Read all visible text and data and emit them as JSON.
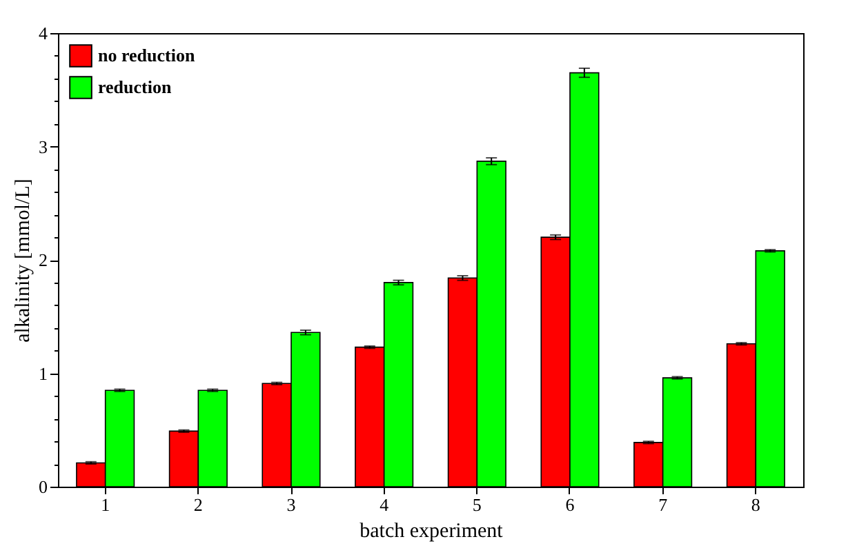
{
  "chart_data": {
    "type": "bar",
    "xlabel": "batch experiment",
    "ylabel": "alkalinity [mmol/L]",
    "categories": [
      "1",
      "2",
      "3",
      "4",
      "5",
      "6",
      "7",
      "8"
    ],
    "series": [
      {
        "name": "no reduction",
        "color": "#ff0000",
        "values": [
          0.21,
          0.49,
          0.91,
          1.23,
          1.84,
          2.2,
          0.39,
          1.26
        ],
        "errors": [
          0.01,
          0.01,
          0.01,
          0.01,
          0.02,
          0.02,
          0.01,
          0.01
        ]
      },
      {
        "name": "reduction",
        "color": "#00ff00",
        "values": [
          0.85,
          0.85,
          1.36,
          1.8,
          2.87,
          3.65,
          0.96,
          2.08
        ],
        "errors": [
          0.01,
          0.01,
          0.02,
          0.02,
          0.03,
          0.04,
          0.01,
          0.01
        ]
      }
    ],
    "ylim": [
      0,
      4
    ],
    "yticks": [
      0,
      {
        "value": 0.2,
        "label": null
      },
      {
        "value": 0.4,
        "label": null
      },
      {
        "value": 0.6,
        "label": null
      },
      {
        "value": 0.8,
        "label": null
      },
      1,
      {
        "value": 1.2,
        "label": null
      },
      {
        "value": 1.4,
        "label": null
      },
      {
        "value": 1.6,
        "label": null
      },
      {
        "value": 1.8,
        "label": null
      },
      2,
      {
        "value": 2.2,
        "label": null
      },
      {
        "value": 2.4,
        "label": null
      },
      {
        "value": 2.6,
        "label": null
      },
      {
        "value": 2.8,
        "label": null
      },
      3,
      {
        "value": 3.2,
        "label": null
      },
      {
        "value": 3.4,
        "label": null
      },
      {
        "value": 3.6,
        "label": null
      },
      {
        "value": 3.8,
        "label": null
      },
      4
    ],
    "legend": "top left",
    "grid": false
  }
}
